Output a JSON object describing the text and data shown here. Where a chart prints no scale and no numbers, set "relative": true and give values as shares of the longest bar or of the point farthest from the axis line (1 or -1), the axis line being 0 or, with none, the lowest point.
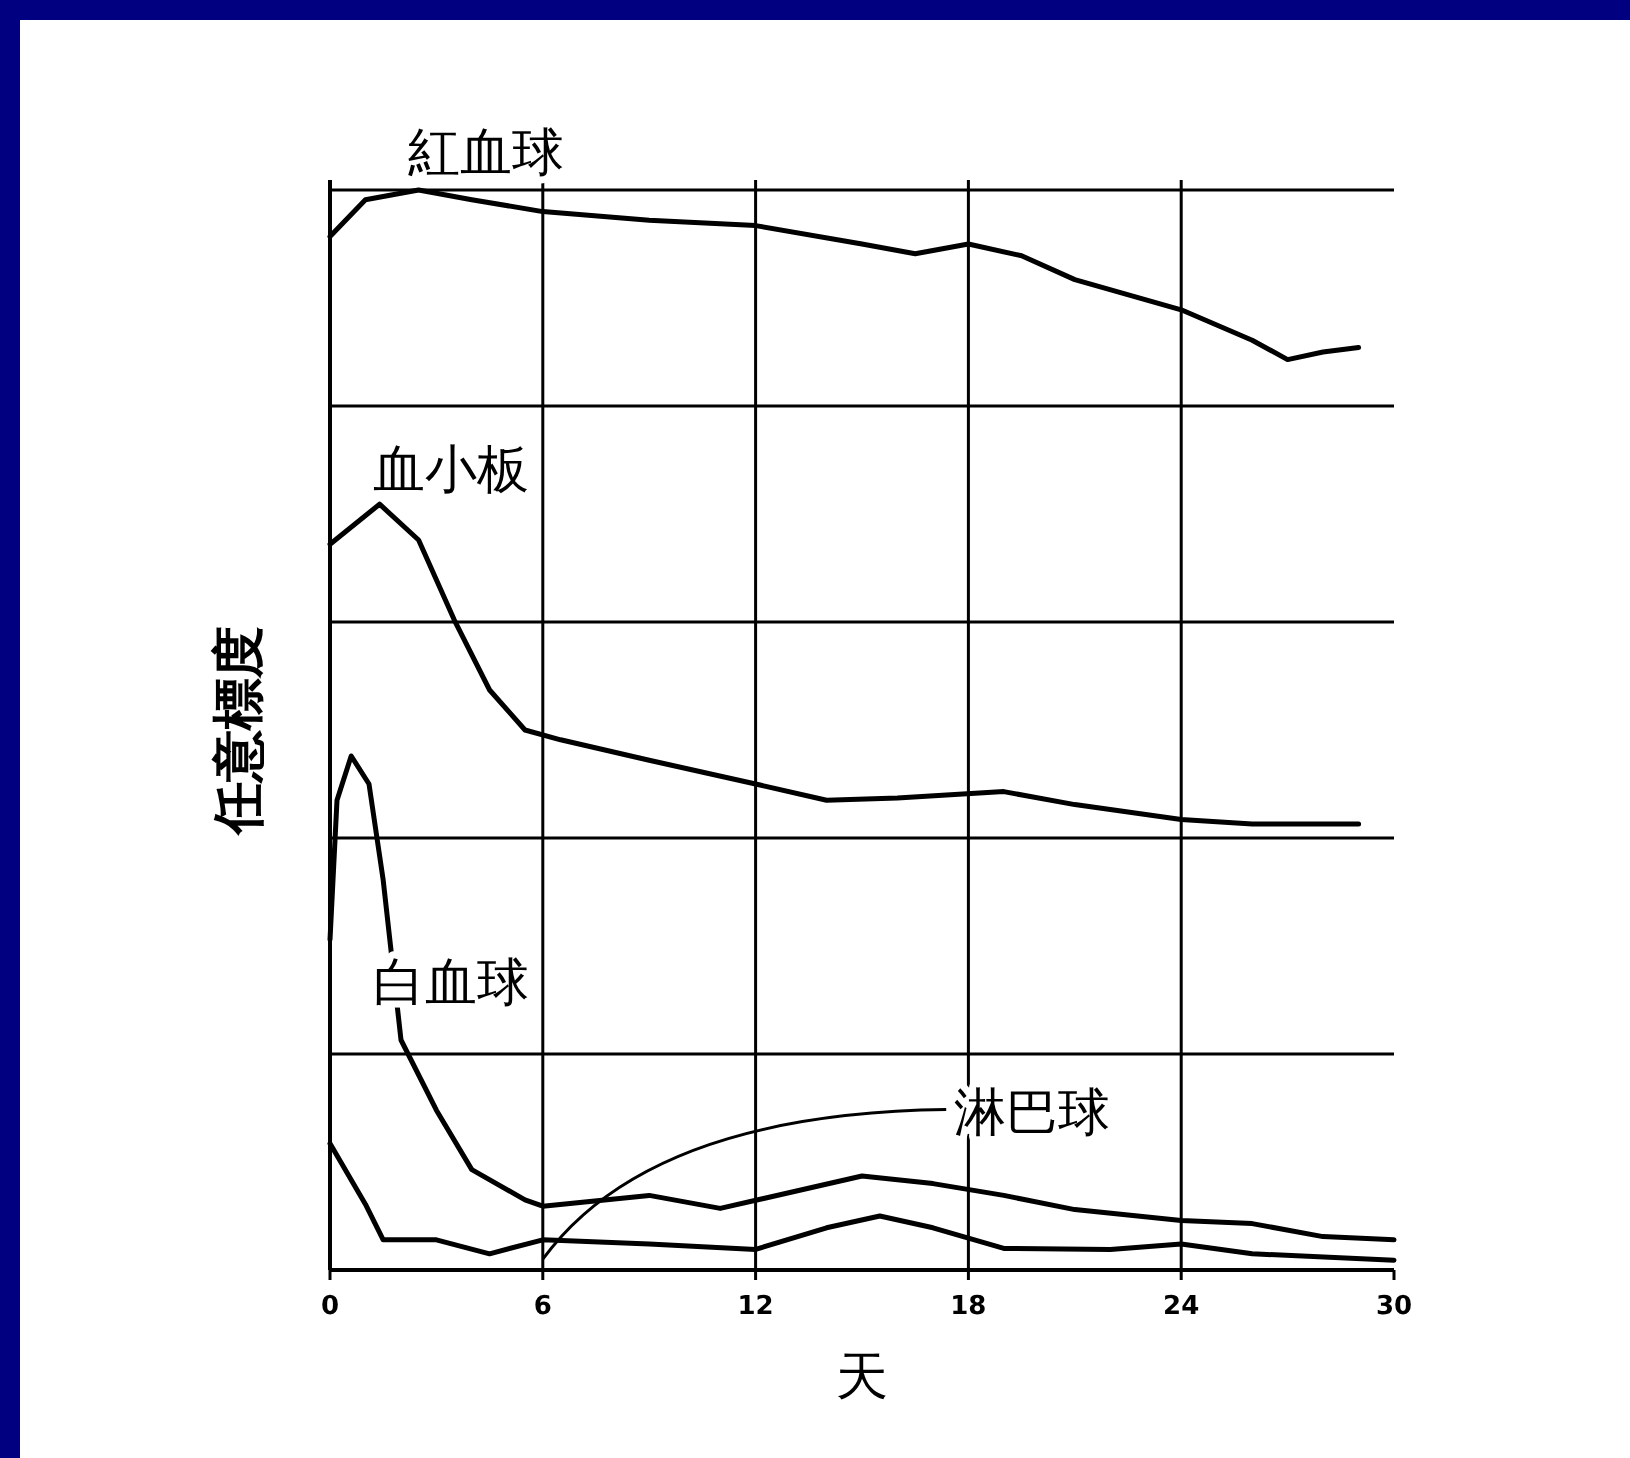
{
  "chart_data": {
    "type": "line",
    "xlabel": "天",
    "ylabel": "任意標度",
    "relative": true,
    "xlim": [
      0,
      30
    ],
    "xticks": [
      0,
      6,
      12,
      18,
      24,
      30
    ],
    "grid": true,
    "line_style": "solid",
    "series": [
      {
        "name": "紅血球",
        "color": "#000000",
        "x": [
          0,
          1,
          2.5,
          4,
          6,
          9,
          12,
          15,
          16.5,
          18,
          19.5,
          21,
          24,
          26,
          27,
          28,
          29
        ],
        "values": [
          0.957,
          0.991,
          1,
          0.991,
          0.98,
          0.972,
          0.967,
          0.95,
          0.941,
          0.95,
          0.939,
          0.917,
          0.889,
          0.861,
          0.843,
          0.85,
          0.854
        ]
      },
      {
        "name": "血小板",
        "color": "#000000",
        "x": [
          0,
          1.4,
          2.5,
          3.5,
          4.5,
          5.5,
          6.5,
          9,
          12,
          14,
          16,
          19,
          21,
          24,
          26,
          29
        ],
        "values": [
          0.672,
          0.709,
          0.676,
          0.602,
          0.537,
          0.5,
          0.491,
          0.472,
          0.45,
          0.435,
          0.437,
          0.443,
          0.431,
          0.417,
          0.413,
          0.413
        ]
      },
      {
        "name": "白血球",
        "color": "#000000",
        "x": [
          0,
          0.2,
          0.6,
          1.1,
          1.5,
          2,
          3,
          4,
          5.5,
          6,
          9,
          11,
          13,
          15,
          17,
          19,
          21,
          24,
          26,
          28,
          30
        ],
        "values": [
          0.306,
          0.435,
          0.476,
          0.45,
          0.361,
          0.213,
          0.148,
          0.093,
          0.065,
          0.059,
          0.069,
          0.057,
          0.072,
          0.087,
          0.08,
          0.069,
          0.056,
          0.046,
          0.043,
          0.031,
          0.028
        ]
      },
      {
        "name": "淋巴球",
        "color": "#000000",
        "x": [
          0,
          1,
          1.5,
          3,
          4.5,
          6,
          9,
          12,
          14,
          15.5,
          17,
          19,
          22,
          24,
          26,
          30
        ],
        "values": [
          0.117,
          0.061,
          0.028,
          0.028,
          0.015,
          0.028,
          0.024,
          0.019,
          0.039,
          0.05,
          0.039,
          0.02,
          0.019,
          0.024,
          0.015,
          0.009
        ]
      }
    ]
  }
}
